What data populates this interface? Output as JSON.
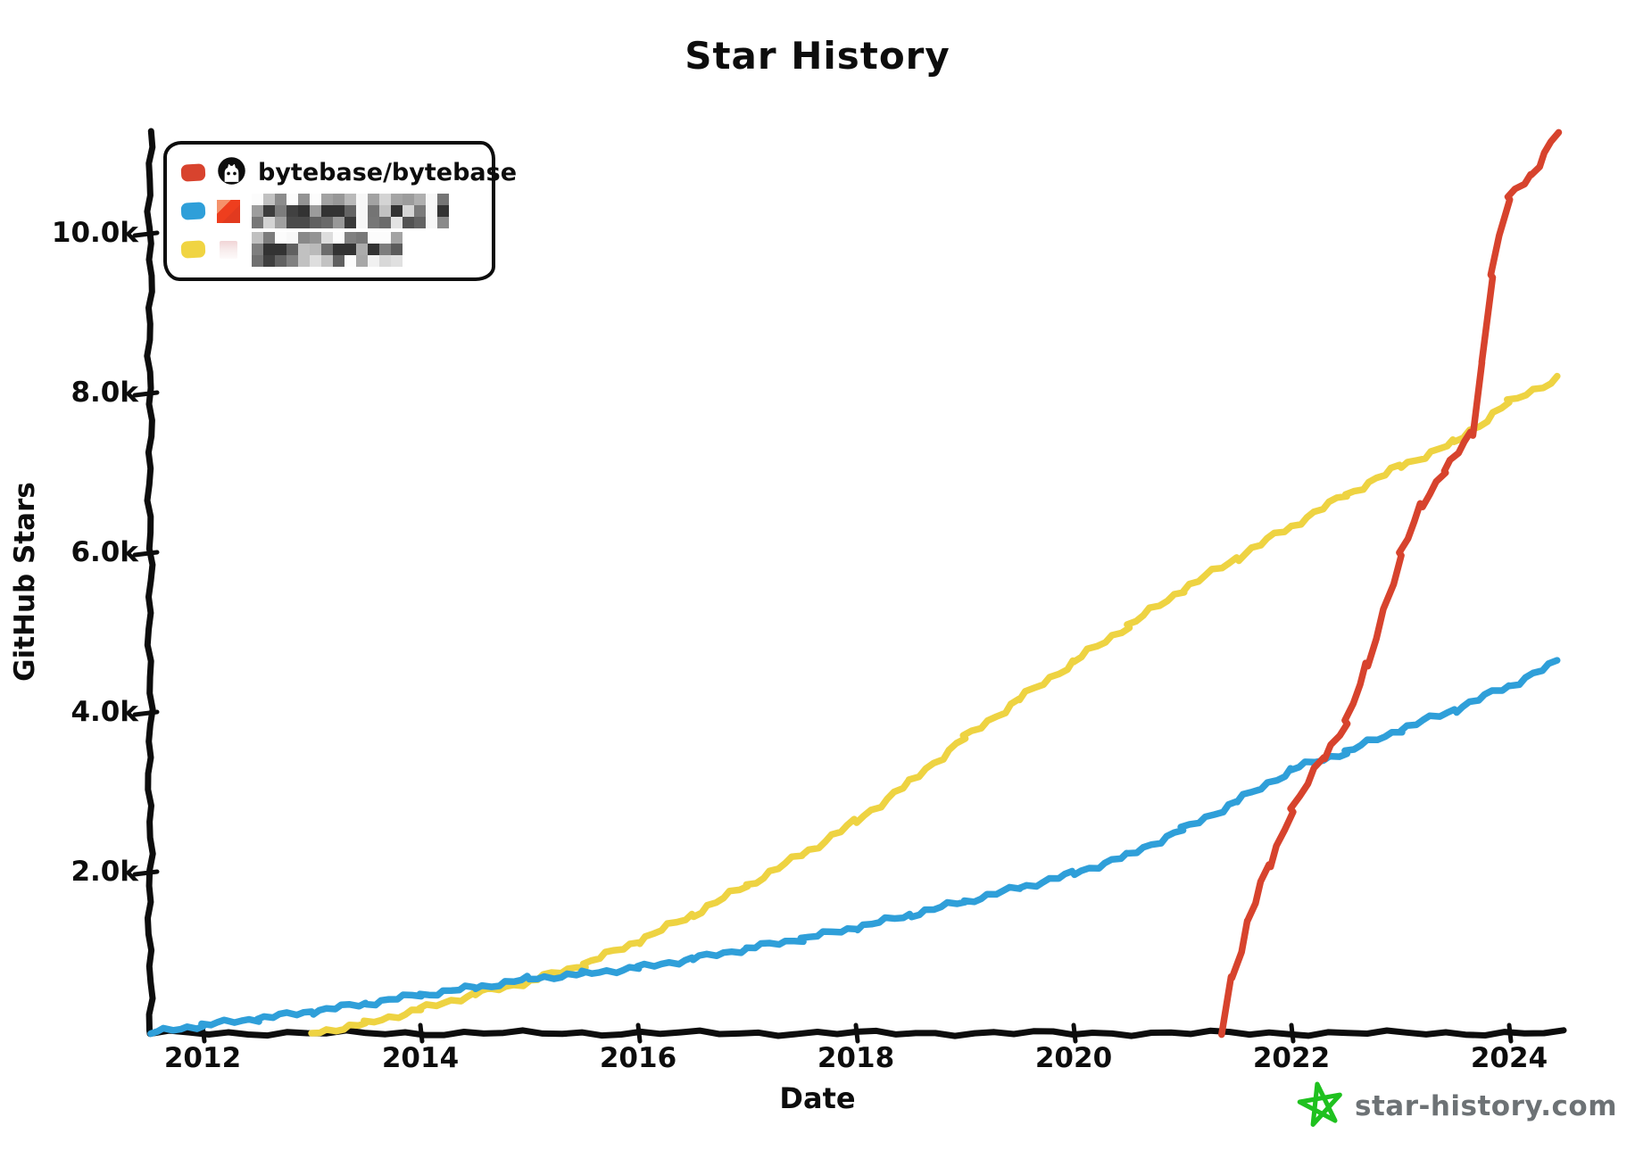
{
  "title": "Star History",
  "axes": {
    "y_label": "GitHub Stars",
    "x_label": "Date",
    "y_ticks": [
      "2.0k",
      "4.0k",
      "6.0k",
      "8.0k",
      "10.0k"
    ],
    "x_ticks": [
      "2012",
      "2014",
      "2016",
      "2018",
      "2020",
      "2022",
      "2024"
    ]
  },
  "legend": [
    {
      "name": "bytebase/bytebase",
      "icon": "github-icon",
      "color": "#d8432e",
      "redacted": false
    },
    {
      "name": "",
      "icon": "red-square-avatar",
      "color": "#2f9fd9",
      "redacted": true
    },
    {
      "name": "",
      "icon": "pink-avatar",
      "color": "#f0d442",
      "redacted": true
    }
  ],
  "watermark": {
    "text": "star-history.com",
    "icon": "green-star-icon",
    "text_color": "#6d7275",
    "star_color": "#1fc11f"
  },
  "chart_data": {
    "type": "line",
    "title": "Star History",
    "xlabel": "Date",
    "ylabel": "GitHub Stars",
    "x_range": [
      2011.5,
      2024.6
    ],
    "ylim": [
      0,
      11500
    ],
    "x_tick_values": [
      2012,
      2014,
      2016,
      2018,
      2020,
      2022,
      2024
    ],
    "y_tick_values": [
      2000,
      4000,
      6000,
      8000,
      10000
    ],
    "grid": false,
    "legend_position": "top-left",
    "series": [
      {
        "name": "",
        "redacted": true,
        "color": "#eed342",
        "points": [
          [
            2013.0,
            0
          ],
          [
            2013.5,
            120
          ],
          [
            2014,
            300
          ],
          [
            2014.5,
            490
          ],
          [
            2015,
            650
          ],
          [
            2015.5,
            860
          ],
          [
            2016,
            1150
          ],
          [
            2016.5,
            1480
          ],
          [
            2017,
            1850
          ],
          [
            2017.5,
            2230
          ],
          [
            2018,
            2650
          ],
          [
            2018.5,
            3150
          ],
          [
            2019,
            3700
          ],
          [
            2019.5,
            4180
          ],
          [
            2020,
            4650
          ],
          [
            2020.5,
            5100
          ],
          [
            2021,
            5550
          ],
          [
            2021.5,
            5950
          ],
          [
            2022,
            6350
          ],
          [
            2022.5,
            6740
          ],
          [
            2023,
            7100
          ],
          [
            2023.5,
            7400
          ],
          [
            2024,
            7900
          ],
          [
            2024.45,
            8210
          ]
        ]
      },
      {
        "name": "",
        "redacted": true,
        "color": "#2f9fd9",
        "points": [
          [
            2011.52,
            0
          ],
          [
            2012,
            100
          ],
          [
            2012.5,
            180
          ],
          [
            2013,
            270
          ],
          [
            2013.5,
            370
          ],
          [
            2014,
            480
          ],
          [
            2014.5,
            570
          ],
          [
            2015,
            680
          ],
          [
            2015.5,
            745
          ],
          [
            2016,
            820
          ],
          [
            2016.5,
            930
          ],
          [
            2017,
            1060
          ],
          [
            2017.5,
            1180
          ],
          [
            2018,
            1320
          ],
          [
            2018.5,
            1480
          ],
          [
            2019,
            1650
          ],
          [
            2019.5,
            1820
          ],
          [
            2020,
            2000
          ],
          [
            2020.5,
            2230
          ],
          [
            2021,
            2550
          ],
          [
            2021.5,
            2900
          ],
          [
            2022,
            3300
          ],
          [
            2022.5,
            3520
          ],
          [
            2023,
            3800
          ],
          [
            2023.5,
            4050
          ],
          [
            2024,
            4350
          ],
          [
            2024.45,
            4650
          ]
        ]
      },
      {
        "name": "bytebase/bytebase",
        "redacted": false,
        "color": "#d7432d",
        "points": [
          [
            2021.35,
            0
          ],
          [
            2021.45,
            700
          ],
          [
            2021.6,
            1400
          ],
          [
            2021.8,
            2100
          ],
          [
            2022.0,
            2800
          ],
          [
            2022.3,
            3450
          ],
          [
            2022.5,
            3900
          ],
          [
            2022.7,
            4600
          ],
          [
            2023.0,
            6000
          ],
          [
            2023.2,
            6600
          ],
          [
            2023.4,
            7050
          ],
          [
            2023.66,
            7500
          ],
          [
            2023.75,
            8400
          ],
          [
            2023.83,
            9500
          ],
          [
            2024.0,
            10450
          ],
          [
            2024.2,
            10750
          ],
          [
            2024.45,
            11290
          ]
        ]
      }
    ]
  }
}
